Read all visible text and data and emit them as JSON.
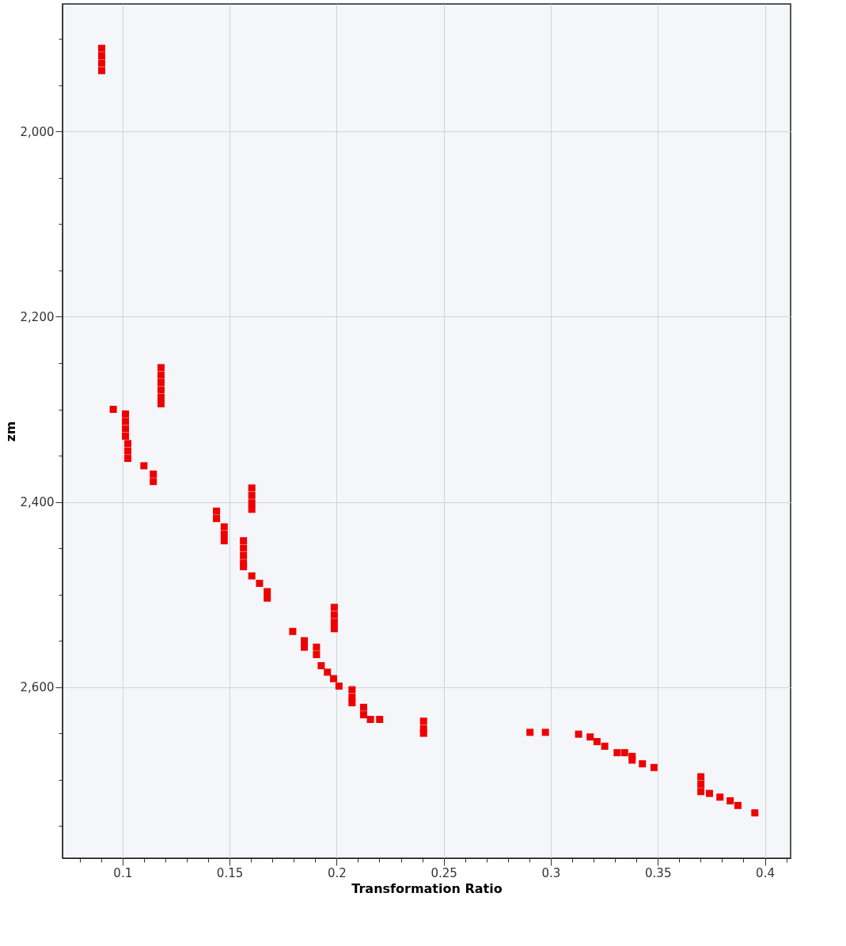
{
  "chart_data": {
    "type": "scatter",
    "xlabel": "Transformation Ratio",
    "ylabel": "zm",
    "marker": "square",
    "grid": true,
    "xlim": [
      0.072,
      0.412
    ],
    "ylim": [
      2785,
      1862
    ],
    "xticks": [
      {
        "value": 0.08,
        "label": null
      },
      {
        "value": 0.09,
        "label": null
      },
      0.1,
      {
        "value": 0.11,
        "label": null
      },
      {
        "value": 0.12,
        "label": null
      },
      {
        "value": 0.13,
        "label": null
      },
      {
        "value": 0.14,
        "label": null
      },
      0.15,
      {
        "value": 0.16,
        "label": null
      },
      {
        "value": 0.17,
        "label": null
      },
      {
        "value": 0.18,
        "label": null
      },
      {
        "value": 0.19,
        "label": null
      },
      0.2,
      {
        "value": 0.21,
        "label": null
      },
      {
        "value": 0.22,
        "label": null
      },
      {
        "value": 0.23,
        "label": null
      },
      {
        "value": 0.24,
        "label": null
      },
      0.25,
      {
        "value": 0.26,
        "label": null
      },
      {
        "value": 0.27,
        "label": null
      },
      {
        "value": 0.28,
        "label": null
      },
      {
        "value": 0.29,
        "label": null
      },
      0.3,
      {
        "value": 0.31,
        "label": null
      },
      {
        "value": 0.32,
        "label": null
      },
      {
        "value": 0.33,
        "label": null
      },
      {
        "value": 0.34,
        "label": null
      },
      0.35,
      {
        "value": 0.36,
        "label": null
      },
      {
        "value": 0.37,
        "label": null
      },
      {
        "value": 0.38,
        "label": null
      },
      {
        "value": 0.39,
        "label": null
      },
      0.4,
      {
        "value": 0.41,
        "label": null
      }
    ],
    "yticks": [
      {
        "value": 1900,
        "label": null
      },
      {
        "value": 1950,
        "label": null
      },
      {
        "value": 2000,
        "label": "2,000"
      },
      {
        "value": 2050,
        "label": null
      },
      {
        "value": 2100,
        "label": null
      },
      {
        "value": 2150,
        "label": null
      },
      {
        "value": 2200,
        "label": "2,200"
      },
      {
        "value": 2250,
        "label": null
      },
      {
        "value": 2300,
        "label": null
      },
      {
        "value": 2350,
        "label": null
      },
      {
        "value": 2400,
        "label": "2,400"
      },
      {
        "value": 2450,
        "label": null
      },
      {
        "value": 2500,
        "label": null
      },
      {
        "value": 2550,
        "label": null
      },
      {
        "value": 2600,
        "label": "2,600"
      },
      {
        "value": 2650,
        "label": null
      },
      {
        "value": 2700,
        "label": null
      },
      {
        "value": 2750,
        "label": null
      }
    ],
    "series": [
      {
        "color": "#ee0000",
        "x": [
          0.0903,
          0.0903,
          0.0903,
          0.0903,
          0.0957,
          0.1014,
          0.1014,
          0.1014,
          0.1014,
          0.1025,
          0.1025,
          0.1025,
          0.11,
          0.1144,
          0.1144,
          0.118,
          0.118,
          0.118,
          0.118,
          0.118,
          0.118,
          0.1439,
          0.1439,
          0.1475,
          0.1475,
          0.1475,
          0.1604,
          0.1604,
          0.1604,
          0.1604,
          0.1565,
          0.1565,
          0.1565,
          0.1565,
          0.1565,
          0.1604,
          0.164,
          0.1676,
          0.1676,
          0.1795,
          0.1849,
          0.1849,
          0.1906,
          0.1906,
          0.1928,
          0.1957,
          0.1986,
          0.2011,
          0.1989,
          0.1989,
          0.1989,
          0.1989,
          0.2072,
          0.2072,
          0.2072,
          0.2126,
          0.2126,
          0.2158,
          0.2201,
          0.2406,
          0.2406,
          0.2406,
          0.2903,
          0.2975,
          0.313,
          0.3184,
          0.3216,
          0.3252,
          0.331,
          0.3345,
          0.338,
          0.338,
          0.3428,
          0.3482,
          0.3701,
          0.3701,
          0.3701,
          0.3741,
          0.379,
          0.3838,
          0.3874,
          0.3953
        ],
        "values": [
          1910,
          1918,
          1926,
          1934,
          2300,
          2305,
          2313,
          2321,
          2329,
          2337,
          2345,
          2353,
          2361,
          2370,
          2378,
          2255,
          2263,
          2271,
          2279,
          2287,
          2294,
          2410,
          2418,
          2427,
          2435,
          2442,
          2385,
          2393,
          2401,
          2408,
          2442,
          2450,
          2458,
          2466,
          2470,
          2480,
          2488,
          2497,
          2504,
          2540,
          2550,
          2557,
          2557,
          2565,
          2577,
          2584,
          2591,
          2599,
          2514,
          2522,
          2530,
          2537,
          2603,
          2611,
          2617,
          2622,
          2630,
          2635,
          2635,
          2637,
          2645,
          2650,
          2649,
          2649,
          2651,
          2654,
          2659,
          2664,
          2671,
          2671,
          2675,
          2679,
          2683,
          2687,
          2697,
          2705,
          2713,
          2715,
          2719,
          2723,
          2728,
          2736
        ]
      }
    ]
  }
}
